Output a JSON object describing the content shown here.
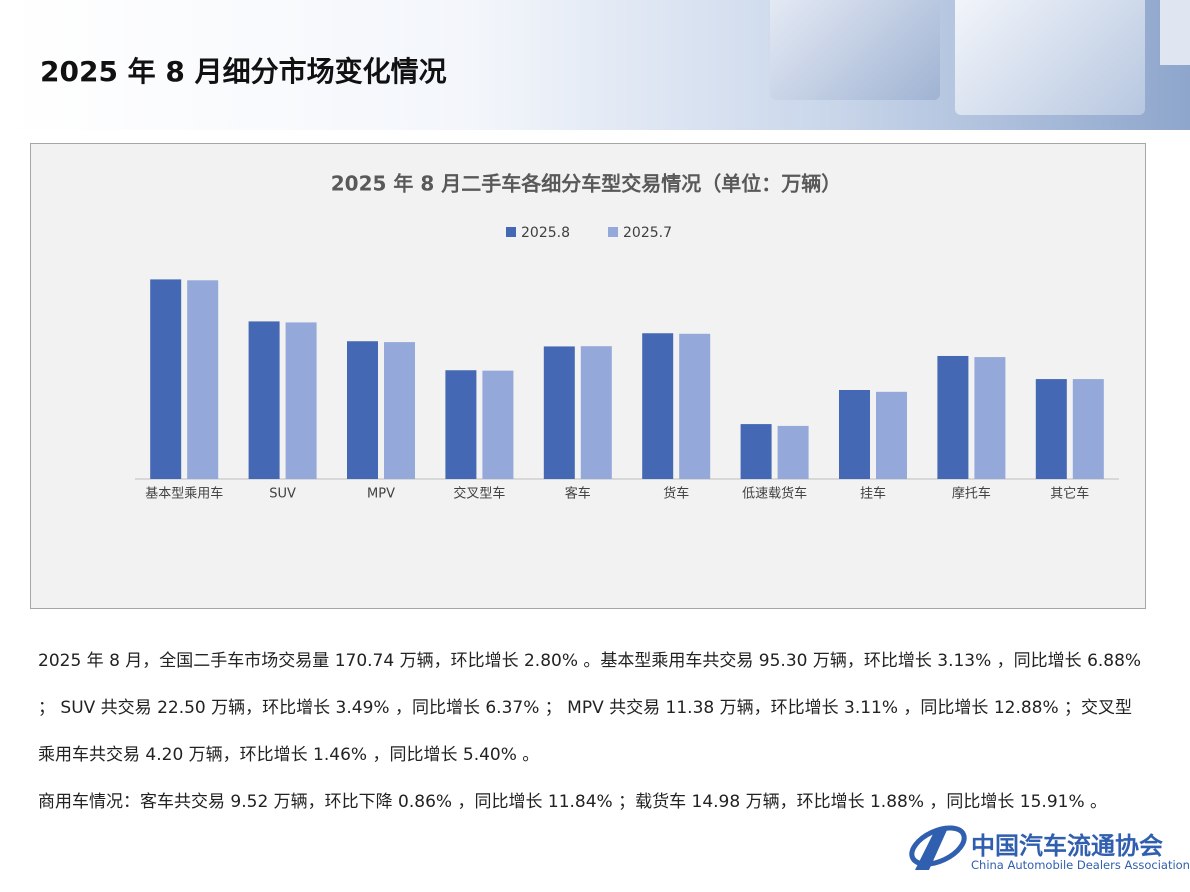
{
  "header": {
    "title": "2025 年 8 月细分市场变化情况"
  },
  "chart_data": {
    "type": "bar",
    "title": "2025 年 8 月二手车各细分车型交易情况（单位：万辆）",
    "categories": [
      "基本型乘用车",
      "SUV",
      "MPV",
      "交叉型车",
      "客车",
      "货车",
      "低速载货车",
      "挂车",
      "摩托车",
      "其它车"
    ],
    "series": [
      {
        "name": "2025.8",
        "color": "#4468b4",
        "values": [
          95.3,
          22.5,
          11.38,
          4.2,
          9.52,
          14.98,
          0.66,
          2.13,
          6.86,
          3.1
        ]
      },
      {
        "name": "2025.7",
        "color": "#94a8d9",
        "values": [
          92.41,
          21.74,
          11.04,
          4.14,
          9.6,
          14.7,
          0.62,
          2.0,
          6.6,
          3.1
        ]
      }
    ],
    "ylim": [
      0.1,
      1000
    ],
    "log_scale": true,
    "grid": false,
    "legend": "top"
  },
  "paragraphs": [
    "2025 年 8 月，全国二手车市场交易量 170.74 万辆，环比增长 2.80% 。基本型乘用车共交易 95.30 万辆，环比增长 3.13% ，同比增长 6.88% ； SUV 共交易 22.50 万辆，环比增长 3.49% ，同比增长 6.37% ； MPV 共交易 11.38 万辆，环比增长 3.11% ，同比增长 12.88% ；交叉型乘用车共交易 4.20 万辆，环比增长 1.46% ，同比增长 5.40% 。",
    "商用车情况：客车共交易 9.52 万辆，环比下降 0.86% ，同比增长 11.84% ；载货车 14.98 万辆，环比增长 1.88% ，同比增长 15.91% 。"
  ],
  "logo": {
    "name": "中国汽车流通协会",
    "english": "China Automobile Dealers Association"
  }
}
